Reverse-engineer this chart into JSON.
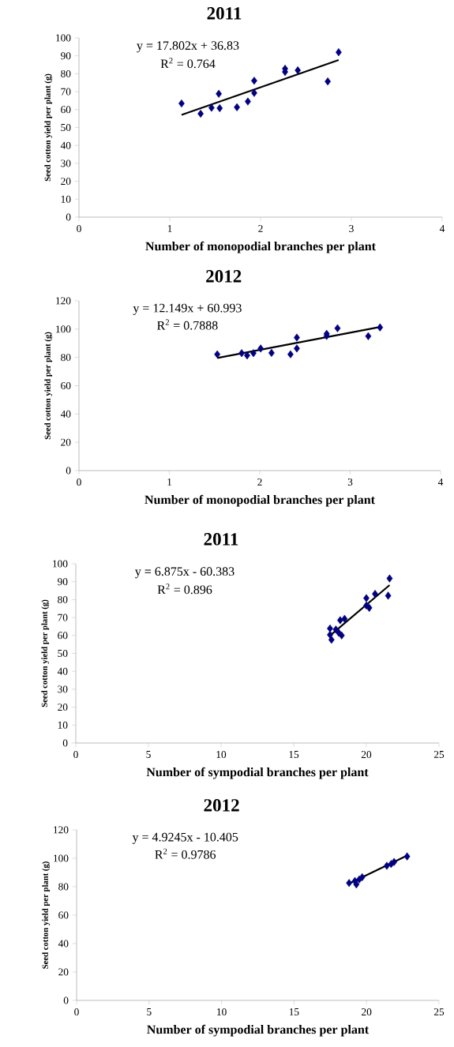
{
  "chart_data": [
    {
      "type": "scatter",
      "title": "2011",
      "xlabel": "Number of monopodial branches per plant",
      "ylabel": "Seed cotton yield per plant (g)",
      "marker": "diamond",
      "xlim": [
        0,
        4
      ],
      "xticks": [
        0,
        1,
        2,
        3,
        4
      ],
      "ylim": [
        0,
        100
      ],
      "yticks": [
        0,
        10,
        20,
        30,
        40,
        50,
        60,
        70,
        80,
        90,
        100
      ],
      "annotations": [
        "y = 17.802x + 36.83",
        "R$^{2}$ = 0.764"
      ],
      "series": [
        {
          "type": "scatter",
          "color": "#000080",
          "x": [
            1.13,
            1.34,
            1.46,
            1.55,
            1.54,
            1.74,
            1.86,
            1.93,
            1.93,
            2.27,
            2.27,
            2.41,
            2.74,
            2.86
          ],
          "values": [
            63.4,
            57.7,
            61,
            60.8,
            68.8,
            61.3,
            64.5,
            76.1,
            69.3,
            82.8,
            81,
            81.9,
            75.7,
            92
          ]
        },
        {
          "type": "line",
          "color": "#000000",
          "marker": "none",
          "x": [
            1.13,
            2.86
          ],
          "values": [
            57,
            87.7
          ]
        }
      ]
    },
    {
      "type": "scatter",
      "title": "2012",
      "xlabel": "Number of monopodial branches per plant",
      "ylabel": "Seed cotton yield per plant (g)",
      "marker": "diamond",
      "xlim": [
        0,
        4
      ],
      "xticks": [
        0,
        1,
        2,
        3,
        4
      ],
      "ylim": [
        0,
        120
      ],
      "yticks": [
        0,
        20,
        40,
        60,
        80,
        100,
        120
      ],
      "annotations": [
        "y = 12.149x + 60.993",
        "R$^{2}$ = 0.7888"
      ],
      "series": [
        {
          "type": "scatter",
          "color": "#000080",
          "x": [
            1.53,
            1.8,
            1.86,
            1.93,
            2.01,
            2.13,
            2.34,
            2.41,
            2.41,
            2.74,
            2.74,
            2.86,
            3.2,
            3.33
          ],
          "values": [
            82.2,
            83,
            81.4,
            83,
            86.3,
            83.2,
            82.2,
            86.3,
            94,
            95.2,
            96.7,
            100.6,
            95,
            101.2
          ]
        },
        {
          "type": "line",
          "color": "#000000",
          "marker": "none",
          "x": [
            1.53,
            3.33
          ],
          "values": [
            79.6,
            101.5
          ]
        }
      ]
    },
    {
      "type": "scatter",
      "title": "2011",
      "xlabel": "Number of sympodial branches per plant",
      "ylabel": "Seed cotton yield per plant (g)",
      "marker": "diamond",
      "xlim": [
        0,
        25
      ],
      "xticks": [
        0,
        5,
        10,
        15,
        20,
        25
      ],
      "ylim": [
        0,
        100
      ],
      "yticks": [
        0,
        10,
        20,
        30,
        40,
        50,
        60,
        70,
        80,
        90,
        100
      ],
      "annotations": [
        "y = 6.875x - 60.383",
        "R$^{2}$ = 0.896"
      ],
      "series": [
        {
          "type": "scatter",
          "color": "#000080",
          "x": [
            17.5,
            17.6,
            17.5,
            17.9,
            18.1,
            18.3,
            18.2,
            18.5,
            20.0,
            20.0,
            20.2,
            20.6,
            21.6,
            21.5
          ],
          "values": [
            63.9,
            57.6,
            60.4,
            63.3,
            61.5,
            60,
            68.5,
            69.3,
            80.8,
            76.7,
            75.4,
            83.2,
            91.8,
            82.2
          ]
        },
        {
          "type": "line",
          "color": "#000000",
          "marker": "none",
          "x": [
            17.6,
            21.6
          ],
          "values": [
            60.6,
            88.1
          ]
        }
      ]
    },
    {
      "type": "scatter",
      "title": "2012",
      "xlabel": "Number of sympodial branches per plant",
      "ylabel": "Seed cotton yield per plant (g)",
      "marker": "diamond",
      "xlim": [
        0,
        25
      ],
      "xticks": [
        0,
        5,
        10,
        15,
        20,
        25
      ],
      "ylim": [
        0,
        120
      ],
      "yticks": [
        0,
        20,
        40,
        60,
        80,
        100,
        120
      ],
      "annotations": [
        "y = 4.9245x - 10.405",
        "R$^{2}$ = 0.9786"
      ],
      "series": [
        {
          "type": "scatter",
          "color": "#000080",
          "x": [
            18.8,
            19.3,
            19.5,
            19.7,
            19.2,
            21.4,
            21.7,
            21.9,
            22.8
          ],
          "values": [
            82.6,
            81.6,
            85.1,
            86.7,
            84,
            94.7,
            96,
            97.4,
            101.3
          ]
        },
        {
          "type": "line",
          "color": "#000000",
          "marker": "none",
          "x": [
            18.8,
            22.8
          ],
          "values": [
            82.2,
            101.9
          ]
        }
      ]
    }
  ]
}
